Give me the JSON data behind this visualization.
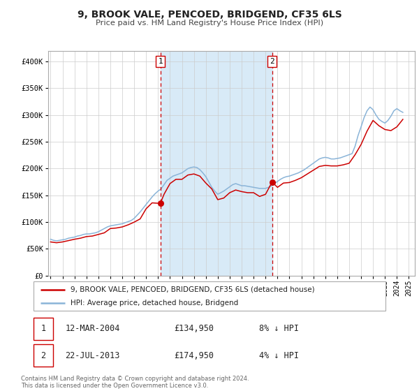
{
  "title": "9, BROOK VALE, PENCOED, BRIDGEND, CF35 6LS",
  "subtitle": "Price paid vs. HM Land Registry's House Price Index (HPI)",
  "ylim": [
    0,
    420000
  ],
  "xlim_start": 1994.8,
  "xlim_end": 2025.5,
  "yticks": [
    0,
    50000,
    100000,
    150000,
    200000,
    250000,
    300000,
    350000,
    400000
  ],
  "ytick_labels": [
    "£0",
    "£50K",
    "£100K",
    "£150K",
    "£200K",
    "£250K",
    "£300K",
    "£350K",
    "£400K"
  ],
  "xtick_years": [
    1995,
    1996,
    1997,
    1998,
    1999,
    2000,
    2001,
    2002,
    2003,
    2004,
    2005,
    2006,
    2007,
    2008,
    2009,
    2010,
    2011,
    2012,
    2013,
    2014,
    2015,
    2016,
    2017,
    2018,
    2019,
    2020,
    2021,
    2022,
    2023,
    2024,
    2025
  ],
  "sale1_date": 2004.19,
  "sale1_price": 134950,
  "sale1_label": "1",
  "sale1_display": "12-MAR-2004",
  "sale1_price_display": "£134,950",
  "sale1_hpi": "8% ↓ HPI",
  "sale2_date": 2013.55,
  "sale2_price": 174950,
  "sale2_label": "2",
  "sale2_display": "22-JUL-2013",
  "sale2_price_display": "£174,950",
  "sale2_hpi": "4% ↓ HPI",
  "property_line_color": "#cc0000",
  "hpi_line_color": "#8ab4d8",
  "vline_color": "#cc0000",
  "shade_color": "#d8eaf7",
  "background_color": "#ffffff",
  "legend_label_property": "9, BROOK VALE, PENCOED, BRIDGEND, CF35 6LS (detached house)",
  "legend_label_hpi": "HPI: Average price, detached house, Bridgend",
  "footnote": "Contains HM Land Registry data © Crown copyright and database right 2024.\nThis data is licensed under the Open Government Licence v3.0.",
  "hpi_data_years": [
    1995.0,
    1995.25,
    1995.5,
    1995.75,
    1996.0,
    1996.25,
    1996.5,
    1996.75,
    1997.0,
    1997.25,
    1997.5,
    1997.75,
    1998.0,
    1998.25,
    1998.5,
    1998.75,
    1999.0,
    1999.25,
    1999.5,
    1999.75,
    2000.0,
    2000.25,
    2000.5,
    2000.75,
    2001.0,
    2001.25,
    2001.5,
    2001.75,
    2002.0,
    2002.25,
    2002.5,
    2002.75,
    2003.0,
    2003.25,
    2003.5,
    2003.75,
    2004.0,
    2004.25,
    2004.5,
    2004.75,
    2005.0,
    2005.25,
    2005.5,
    2005.75,
    2006.0,
    2006.25,
    2006.5,
    2006.75,
    2007.0,
    2007.25,
    2007.5,
    2007.75,
    2008.0,
    2008.25,
    2008.5,
    2008.75,
    2009.0,
    2009.25,
    2009.5,
    2009.75,
    2010.0,
    2010.25,
    2010.5,
    2010.75,
    2011.0,
    2011.25,
    2011.5,
    2011.75,
    2012.0,
    2012.25,
    2012.5,
    2012.75,
    2013.0,
    2013.25,
    2013.5,
    2013.75,
    2014.0,
    2014.25,
    2014.5,
    2014.75,
    2015.0,
    2015.25,
    2015.5,
    2015.75,
    2016.0,
    2016.25,
    2016.5,
    2016.75,
    2017.0,
    2017.25,
    2017.5,
    2017.75,
    2018.0,
    2018.25,
    2018.5,
    2018.75,
    2019.0,
    2019.25,
    2019.5,
    2019.75,
    2020.0,
    2020.25,
    2020.5,
    2020.75,
    2021.0,
    2021.25,
    2021.5,
    2021.75,
    2022.0,
    2022.25,
    2022.5,
    2022.75,
    2023.0,
    2023.25,
    2023.5,
    2023.75,
    2024.0,
    2024.25,
    2024.5
  ],
  "hpi_data_values": [
    68000,
    66000,
    65000,
    66000,
    67000,
    68000,
    70000,
    71000,
    72000,
    74000,
    75000,
    77000,
    78000,
    78000,
    79000,
    80000,
    82000,
    85000,
    88000,
    91000,
    93000,
    94000,
    95000,
    96000,
    97000,
    99000,
    101000,
    103000,
    107000,
    113000,
    119000,
    126000,
    133000,
    140000,
    147000,
    153000,
    158000,
    162000,
    170000,
    178000,
    182000,
    186000,
    188000,
    190000,
    192000,
    196000,
    200000,
    202000,
    203000,
    202000,
    198000,
    192000,
    185000,
    175000,
    165000,
    158000,
    152000,
    155000,
    158000,
    162000,
    166000,
    170000,
    172000,
    170000,
    168000,
    168000,
    167000,
    166000,
    165000,
    164000,
    163000,
    163000,
    163000,
    165000,
    168000,
    172000,
    176000,
    180000,
    183000,
    185000,
    186000,
    188000,
    190000,
    192000,
    195000,
    198000,
    202000,
    206000,
    210000,
    214000,
    218000,
    220000,
    221000,
    220000,
    218000,
    218000,
    219000,
    220000,
    222000,
    224000,
    226000,
    228000,
    242000,
    262000,
    278000,
    295000,
    308000,
    315000,
    310000,
    300000,
    292000,
    288000,
    285000,
    290000,
    298000,
    308000,
    312000,
    308000,
    305000
  ],
  "prop_data_dates": [
    1995.0,
    1995.5,
    1996.0,
    1996.5,
    1997.0,
    1997.5,
    1998.0,
    1998.5,
    1999.0,
    1999.5,
    2000.0,
    2000.5,
    2001.0,
    2001.5,
    2002.0,
    2002.5,
    2003.0,
    2003.5,
    2004.19,
    2004.5,
    2005.0,
    2005.5,
    2006.0,
    2006.5,
    2007.0,
    2007.5,
    2008.0,
    2008.5,
    2009.0,
    2009.5,
    2010.0,
    2010.5,
    2011.0,
    2011.5,
    2012.0,
    2012.5,
    2013.0,
    2013.55,
    2014.0,
    2014.5,
    2015.0,
    2015.5,
    2016.0,
    2016.5,
    2017.0,
    2017.5,
    2018.0,
    2018.5,
    2019.0,
    2019.5,
    2020.0,
    2020.5,
    2021.0,
    2021.5,
    2022.0,
    2022.5,
    2023.0,
    2023.5,
    2024.0,
    2024.5
  ],
  "prop_data_values": [
    63000,
    61500,
    63000,
    65500,
    68000,
    70000,
    73000,
    74000,
    77000,
    80000,
    88000,
    89000,
    91000,
    95000,
    100000,
    106000,
    125000,
    136000,
    134950,
    152000,
    172000,
    180000,
    180000,
    188000,
    190000,
    186000,
    173000,
    162000,
    142000,
    145000,
    155000,
    160000,
    157000,
    155000,
    155000,
    148000,
    152000,
    174950,
    165000,
    173000,
    174000,
    178000,
    183000,
    190000,
    197000,
    204000,
    206000,
    205000,
    205000,
    207000,
    210000,
    226000,
    245000,
    270000,
    290000,
    280000,
    273000,
    271000,
    278000,
    292000
  ]
}
